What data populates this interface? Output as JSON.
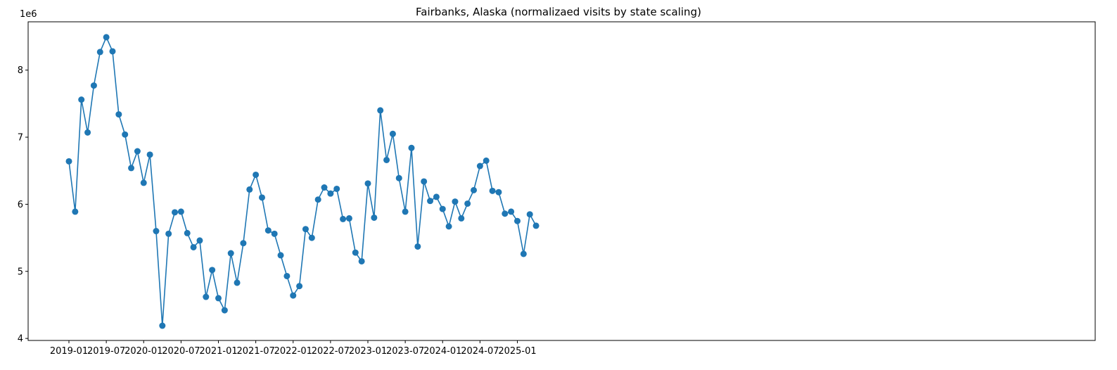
{
  "chart_data": {
    "type": "line",
    "title": "Fairbanks, Alaska (normalizaed visits by state scaling)",
    "xlabel": "",
    "ylabel": "",
    "y_offset_label": "1e6",
    "series_color": "#1f77b4",
    "marker": "circle",
    "grid": false,
    "x_start": "2019-01",
    "x_interval": "monthly",
    "x_ticks": [
      "2019-01",
      "2019-07",
      "2020-01",
      "2020-07",
      "2021-01",
      "2021-07",
      "2022-01",
      "2022-07",
      "2023-01",
      "2023-07",
      "2024-01",
      "2024-07",
      "2025-01"
    ],
    "y_ticks": [
      4,
      5,
      6,
      7,
      8
    ],
    "ylim": [
      3.97,
      8.72
    ],
    "values": [
      6.64,
      5.89,
      7.56,
      7.07,
      7.77,
      8.27,
      8.49,
      8.28,
      7.34,
      7.04,
      6.54,
      6.79,
      6.32,
      6.74,
      5.6,
      4.19,
      5.56,
      5.88,
      5.89,
      5.57,
      5.36,
      5.46,
      4.62,
      5.02,
      4.6,
      4.42,
      5.27,
      4.83,
      5.42,
      6.22,
      6.44,
      6.1,
      5.61,
      5.56,
      5.24,
      4.93,
      4.64,
      4.78,
      5.63,
      5.5,
      6.07,
      6.25,
      6.16,
      6.23,
      5.78,
      5.79,
      5.28,
      5.15,
      6.31,
      5.8,
      7.4,
      6.66,
      7.05,
      6.39,
      5.89,
      6.84,
      5.37,
      6.34,
      6.05,
      6.11,
      5.93,
      5.67,
      6.04,
      5.79,
      6.01,
      6.21,
      6.57,
      6.65,
      6.2,
      6.18,
      5.86,
      5.89,
      5.75,
      5.26,
      5.85,
      5.68
    ]
  }
}
